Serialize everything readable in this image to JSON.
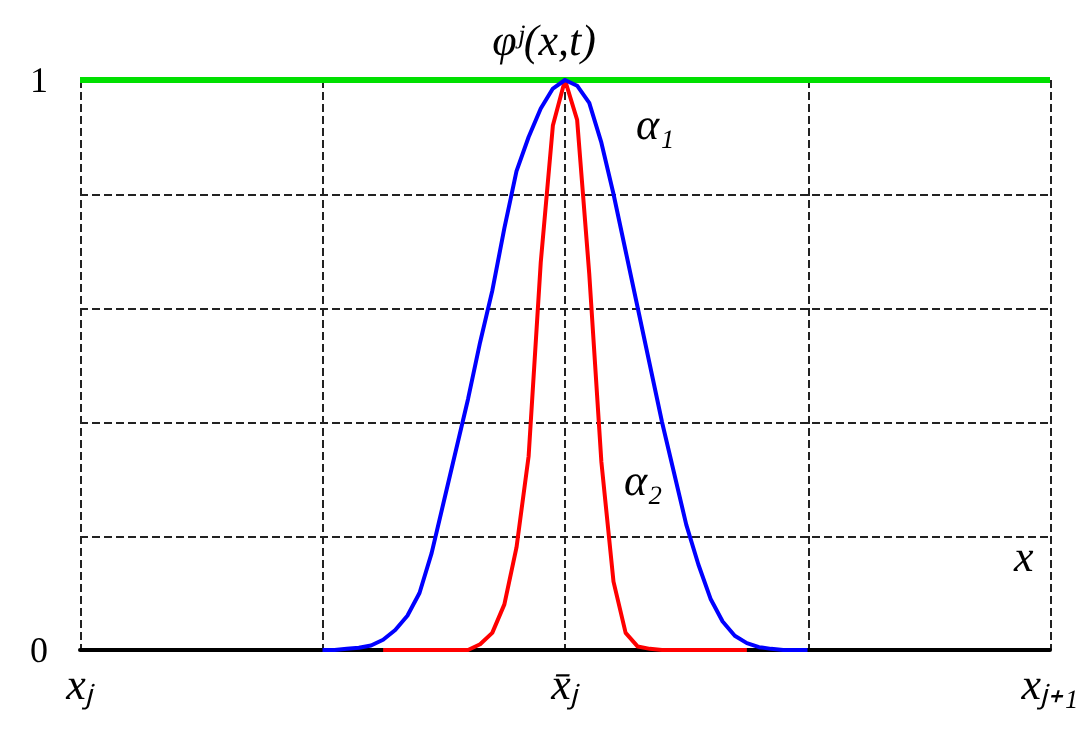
{
  "chart_data": {
    "type": "line",
    "title": "φʲ(x,t)",
    "xlabel": "x",
    "categories": [
      "xⱼ",
      null,
      null,
      null,
      null,
      null,
      null,
      null,
      null,
      null,
      null,
      null,
      null,
      null,
      null,
      null,
      null,
      null,
      null,
      null,
      null,
      null,
      null,
      null,
      null,
      null,
      null,
      null,
      null,
      null,
      null,
      null,
      null,
      null,
      null,
      null,
      null,
      null,
      null,
      null,
      "x̄ⱼ",
      null,
      null,
      null,
      null,
      null,
      null,
      null,
      null,
      null,
      null,
      null,
      null,
      null,
      null,
      null,
      null,
      null,
      null,
      null,
      null,
      null,
      null,
      null,
      null,
      null,
      null,
      null,
      null,
      null,
      null,
      null,
      null,
      null,
      null,
      null,
      null,
      null,
      null,
      null,
      "xⱼ₊₁"
    ],
    "ylim": [
      0,
      1
    ],
    "yticks": [
      0,
      {
        "value": 0.2,
        "label": null
      },
      {
        "value": 0.4,
        "label": null
      },
      {
        "value": 0.6,
        "label": null
      },
      {
        "value": 0.8,
        "label": null
      },
      1
    ],
    "grid": true,
    "marker": "none",
    "line_style": "solid",
    "series": [
      {
        "color": "#00e000",
        "values": [
          1,
          1,
          1,
          1,
          1,
          1,
          1,
          1,
          1,
          1,
          1,
          1,
          1,
          1,
          1,
          1,
          1,
          1,
          1,
          1,
          1,
          1,
          1,
          1,
          1,
          1,
          1,
          1,
          1,
          1,
          1,
          1,
          1,
          1,
          1,
          1,
          1,
          1,
          1,
          1,
          1,
          1,
          1,
          1,
          1,
          1,
          1,
          1,
          1,
          1,
          1,
          1,
          1,
          1,
          1,
          1,
          1,
          1,
          1,
          1,
          1,
          1,
          1,
          1,
          1,
          1,
          1,
          1,
          1,
          1,
          1,
          1,
          1,
          1,
          1,
          1,
          1,
          1,
          1,
          1,
          1
        ]
      },
      {
        "color": "#ff0000",
        "values": [
          null,
          null,
          null,
          null,
          null,
          null,
          null,
          null,
          null,
          null,
          null,
          null,
          null,
          null,
          null,
          null,
          null,
          null,
          null,
          null,
          null,
          null,
          null,
          null,
          null,
          0,
          0,
          0,
          0,
          0,
          0,
          0,
          0,
          0.01,
          0.03,
          0.08,
          0.18,
          0.34,
          0.68,
          0.92,
          1,
          0.93,
          0.66,
          0.33,
          0.12,
          0.03,
          0.006,
          0.002,
          0,
          0,
          0,
          0,
          0,
          0,
          0,
          0,
          null,
          null,
          null,
          null,
          null,
          null,
          null,
          null,
          null,
          null,
          null,
          null,
          null,
          null,
          null,
          null,
          null,
          null,
          null,
          null,
          null,
          null,
          null,
          null,
          null
        ]
      },
      {
        "color": "#0000ff",
        "values": [
          null,
          null,
          null,
          null,
          null,
          null,
          null,
          null,
          null,
          null,
          null,
          null,
          null,
          null,
          null,
          null,
          null,
          null,
          null,
          null,
          0,
          0,
          0.002,
          0.004,
          0.008,
          0.018,
          0.035,
          0.06,
          0.1,
          0.17,
          0.26,
          0.35,
          0.44,
          0.54,
          0.63,
          0.74,
          0.84,
          0.9,
          0.95,
          0.985,
          1,
          0.99,
          0.96,
          0.89,
          0.8,
          0.7,
          0.6,
          0.5,
          0.4,
          0.31,
          0.22,
          0.15,
          0.09,
          0.05,
          0.025,
          0.012,
          0.005,
          0.002,
          0,
          0,
          0,
          null,
          null,
          null,
          null,
          null,
          null,
          null,
          null,
          null,
          null,
          null,
          null,
          null,
          null,
          null,
          null,
          null,
          null,
          null,
          null
        ]
      }
    ],
    "annotations": [
      "α₁",
      "α₂"
    ]
  }
}
